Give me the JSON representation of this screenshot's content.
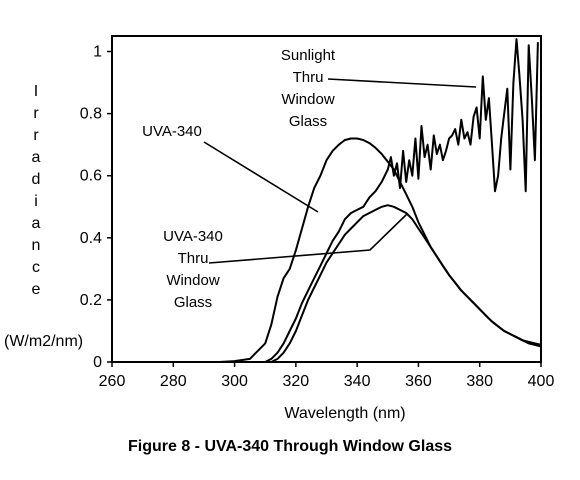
{
  "caption": "Figure 8 - UVA-340 Through Window Glass",
  "chart_data": {
    "type": "line",
    "title": "",
    "xlabel": "Wavelength (nm)",
    "ylabel_letters": [
      "I",
      "r",
      "r",
      "a",
      "d",
      "i",
      "a",
      "n",
      "c",
      "e"
    ],
    "ylabel_unit": "(W/m2/nm)",
    "xlim": [
      260,
      400
    ],
    "ylim": [
      0,
      1.05
    ],
    "x_ticks": [
      260,
      280,
      300,
      320,
      340,
      360,
      380,
      400
    ],
    "y_ticks": [
      0,
      0.2,
      0.4,
      0.6,
      0.8,
      1
    ],
    "y_tick_labels": [
      "0",
      "0.2",
      "0.4",
      "0.6",
      "0.8",
      "1"
    ],
    "grid": false,
    "series": [
      {
        "name": "UVA-340",
        "x": [
          295,
          300,
          305,
          310,
          312,
          314,
          316,
          318,
          320,
          322,
          324,
          326,
          328,
          330,
          332,
          334,
          336,
          338,
          340,
          342,
          344,
          346,
          348,
          350,
          352,
          354,
          356,
          358,
          360,
          362,
          364,
          366,
          368,
          370,
          372,
          374,
          376,
          378,
          380,
          382,
          384,
          386,
          388,
          390,
          392,
          394,
          396,
          398,
          400
        ],
        "y": [
          0,
          0.003,
          0.01,
          0.06,
          0.12,
          0.21,
          0.27,
          0.3,
          0.36,
          0.43,
          0.5,
          0.56,
          0.6,
          0.65,
          0.68,
          0.7,
          0.715,
          0.72,
          0.72,
          0.715,
          0.705,
          0.69,
          0.67,
          0.645,
          0.62,
          0.58,
          0.54,
          0.5,
          0.45,
          0.41,
          0.37,
          0.34,
          0.31,
          0.28,
          0.255,
          0.23,
          0.21,
          0.19,
          0.17,
          0.15,
          0.13,
          0.115,
          0.1,
          0.09,
          0.08,
          0.07,
          0.06,
          0.055,
          0.05
        ]
      },
      {
        "name": "Sunlight Thru Window Glass",
        "x": [
          310,
          312,
          314,
          316,
          318,
          320,
          322,
          324,
          326,
          328,
          330,
          332,
          334,
          336,
          338,
          340,
          342,
          344,
          346,
          348,
          350,
          351,
          352,
          353,
          354,
          355,
          356,
          357,
          358,
          359,
          360,
          361,
          362,
          363,
          364,
          365,
          366,
          367,
          368,
          369,
          370,
          371,
          372,
          373,
          374,
          375,
          376,
          377,
          378,
          379,
          380,
          381,
          382,
          383,
          384,
          385,
          386,
          387,
          388,
          389,
          390,
          391,
          392,
          393,
          394,
          395,
          396,
          397,
          398,
          399
        ],
        "y": [
          0,
          0.01,
          0.03,
          0.06,
          0.1,
          0.14,
          0.19,
          0.23,
          0.27,
          0.31,
          0.35,
          0.39,
          0.42,
          0.46,
          0.48,
          0.49,
          0.5,
          0.53,
          0.55,
          0.58,
          0.62,
          0.66,
          0.6,
          0.64,
          0.56,
          0.68,
          0.58,
          0.65,
          0.6,
          0.72,
          0.59,
          0.76,
          0.66,
          0.7,
          0.62,
          0.73,
          0.67,
          0.7,
          0.65,
          0.68,
          0.72,
          0.73,
          0.75,
          0.7,
          0.78,
          0.72,
          0.74,
          0.7,
          0.79,
          0.82,
          0.72,
          0.92,
          0.78,
          0.85,
          0.7,
          0.55,
          0.6,
          0.72,
          0.8,
          0.88,
          0.62,
          0.9,
          1.04,
          0.92,
          0.78,
          0.55,
          1.02,
          0.85,
          0.65,
          1.03
        ]
      },
      {
        "name": "UVA-340 Thru Window Glass",
        "x": [
          312,
          314,
          316,
          318,
          320,
          322,
          324,
          326,
          328,
          330,
          332,
          334,
          336,
          338,
          340,
          342,
          344,
          346,
          348,
          350,
          352,
          354,
          356,
          358,
          360,
          362,
          364,
          366,
          368,
          370,
          372,
          374,
          376,
          378,
          380,
          382,
          384,
          386,
          388,
          390,
          392,
          394,
          396,
          398,
          400
        ],
        "y": [
          0,
          0.01,
          0.03,
          0.06,
          0.1,
          0.15,
          0.2,
          0.24,
          0.28,
          0.32,
          0.35,
          0.38,
          0.41,
          0.43,
          0.45,
          0.47,
          0.48,
          0.49,
          0.5,
          0.505,
          0.5,
          0.49,
          0.48,
          0.46,
          0.43,
          0.4,
          0.37,
          0.34,
          0.31,
          0.28,
          0.255,
          0.23,
          0.21,
          0.19,
          0.17,
          0.15,
          0.13,
          0.115,
          0.1,
          0.09,
          0.08,
          0.07,
          0.065,
          0.06,
          0.055
        ]
      }
    ],
    "annotations": [
      {
        "lines": [
          "UVA-340"
        ],
        "series": "UVA-340"
      },
      {
        "lines": [
          "Sunlight",
          "Thru",
          "Window",
          "Glass"
        ],
        "series": "Sunlight Thru Window Glass"
      },
      {
        "lines": [
          "UVA-340",
          "Thru",
          "Window",
          "Glass"
        ],
        "series": "UVA-340 Thru Window Glass"
      }
    ]
  }
}
